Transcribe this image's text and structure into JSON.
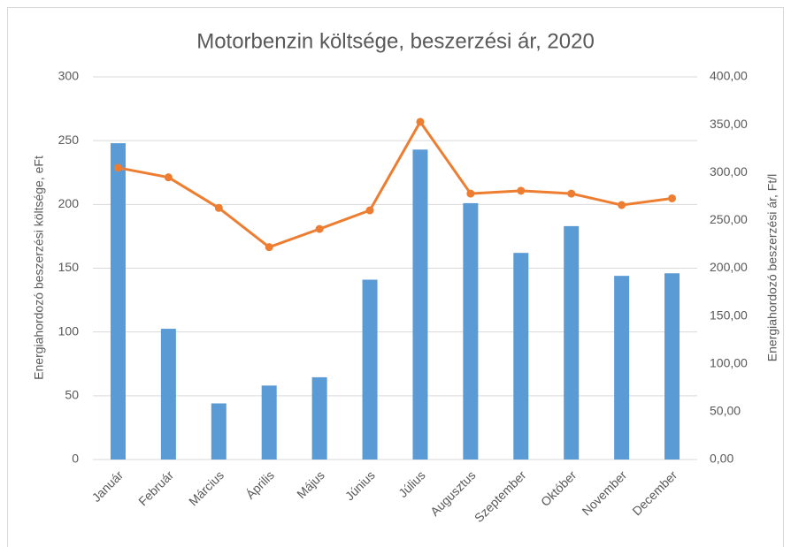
{
  "chart_data": {
    "type": "combo",
    "title": "Motorbenzin költsége, beszerzési ár, 2020",
    "ylabel": "Energiahordozó beszerzési költsége, eFt",
    "y2label": "Energiahordozó beszerzési ár, Ft/l",
    "categories": [
      "Január",
      "Február",
      "Március",
      "Április",
      "Május",
      "Június",
      "Július",
      "Augusztus",
      "Szeptember",
      "Október",
      "November",
      "December"
    ],
    "series": [
      {
        "name": "Energiahordozó beszerzési költsége, eFt",
        "type": "bar",
        "color": "#5b9bd5",
        "axis": "y",
        "values": [
          248,
          102.5,
          44,
          58,
          64.5,
          141,
          243,
          201,
          162,
          183,
          144,
          146
        ]
      },
      {
        "name": "Energiahordozó beszerzési ár, Ft/l",
        "type": "line",
        "color": "#ed7d31",
        "axis": "y2",
        "values": [
          305,
          295,
          263,
          222,
          241,
          260.5,
          353,
          278,
          281,
          278,
          266,
          273
        ]
      }
    ],
    "ylim": [
      0,
      300
    ],
    "yticks": [
      0,
      50,
      100,
      150,
      200,
      250,
      300
    ],
    "y2lim": [
      0,
      400
    ],
    "y2ticks": [
      {
        "value": 0,
        "label": "0,00"
      },
      {
        "value": 50,
        "label": "50,00"
      },
      {
        "value": 100,
        "label": "100,00"
      },
      {
        "value": 150,
        "label": "150,00"
      },
      {
        "value": 200,
        "label": "200,00"
      },
      {
        "value": 250,
        "label": "250,00"
      },
      {
        "value": 300,
        "label": "300,00"
      },
      {
        "value": 350,
        "label": "350,00"
      },
      {
        "value": 400,
        "label": "400,00"
      }
    ],
    "grid": true
  }
}
